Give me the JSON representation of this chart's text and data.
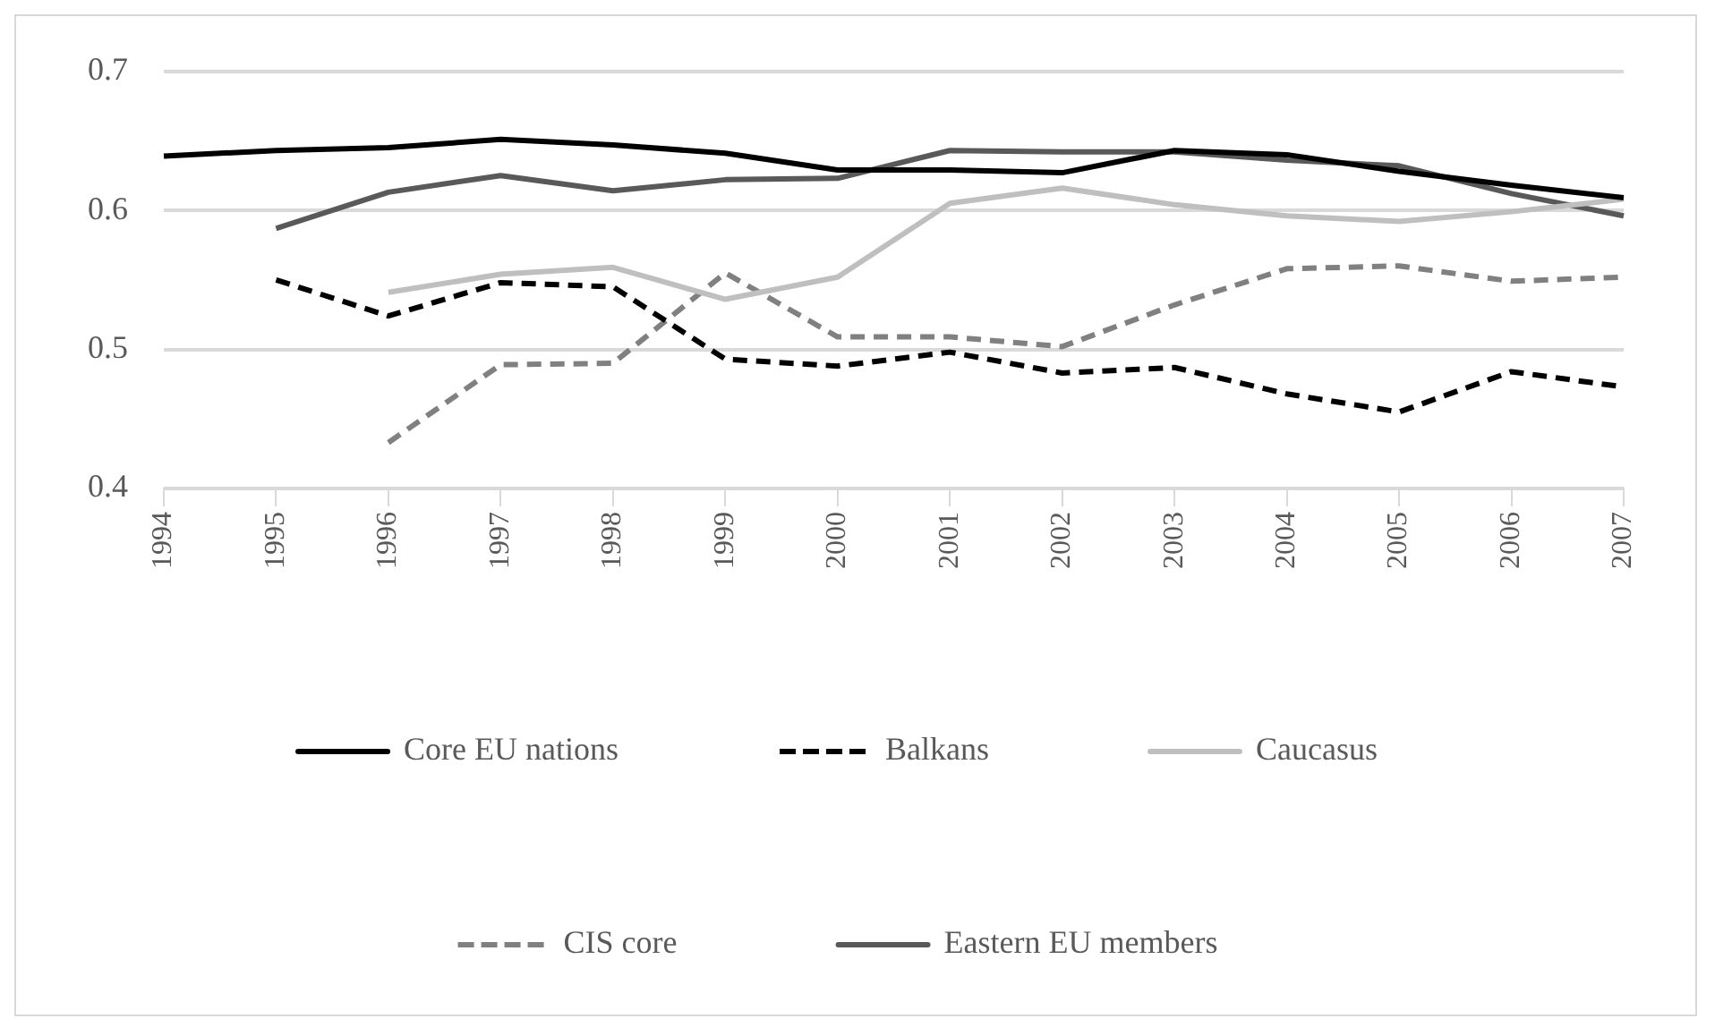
{
  "chart_data": {
    "type": "line",
    "categories": [
      "1994",
      "1995",
      "1996",
      "1997",
      "1998",
      "1999",
      "2000",
      "2001",
      "2002",
      "2003",
      "2004",
      "2005",
      "2006",
      "2007"
    ],
    "series": [
      {
        "name": "Core EU nations",
        "color": "#000000",
        "line_style": "solid",
        "values": [
          0.639,
          0.643,
          0.645,
          0.651,
          0.647,
          0.641,
          0.629,
          0.629,
          0.627,
          0.643,
          0.64,
          0.628,
          0.618,
          0.609
        ]
      },
      {
        "name": "Balkans",
        "color": "#000000",
        "line_style": "dashed",
        "values": [
          null,
          0.55,
          0.524,
          0.548,
          0.545,
          0.493,
          0.488,
          0.498,
          0.483,
          0.487,
          0.468,
          0.455,
          0.484,
          0.473
        ]
      },
      {
        "name": "Caucasus",
        "color": "#bfbfbf",
        "line_style": "solid",
        "values": [
          null,
          null,
          0.541,
          0.554,
          0.559,
          0.536,
          0.552,
          0.605,
          0.616,
          0.604,
          0.596,
          0.592,
          0.599,
          0.608
        ]
      },
      {
        "name": "CIS core",
        "color": "#808080",
        "line_style": "dashed",
        "values": [
          null,
          null,
          0.433,
          0.489,
          0.49,
          0.555,
          0.509,
          0.509,
          0.502,
          0.532,
          0.558,
          0.56,
          0.549,
          0.552
        ]
      },
      {
        "name": "Eastern EU members",
        "color": "#595959",
        "line_style": "solid",
        "values": [
          null,
          0.587,
          0.613,
          0.625,
          0.614,
          0.622,
          0.623,
          0.643,
          0.642,
          0.642,
          0.636,
          0.632,
          0.612,
          0.596
        ]
      }
    ],
    "ylim": [
      0.4,
      0.7
    ],
    "yticks": [
      0.4,
      0.5,
      0.6,
      0.7
    ],
    "grid": "y",
    "legend": "bottom",
    "marker": "none"
  }
}
